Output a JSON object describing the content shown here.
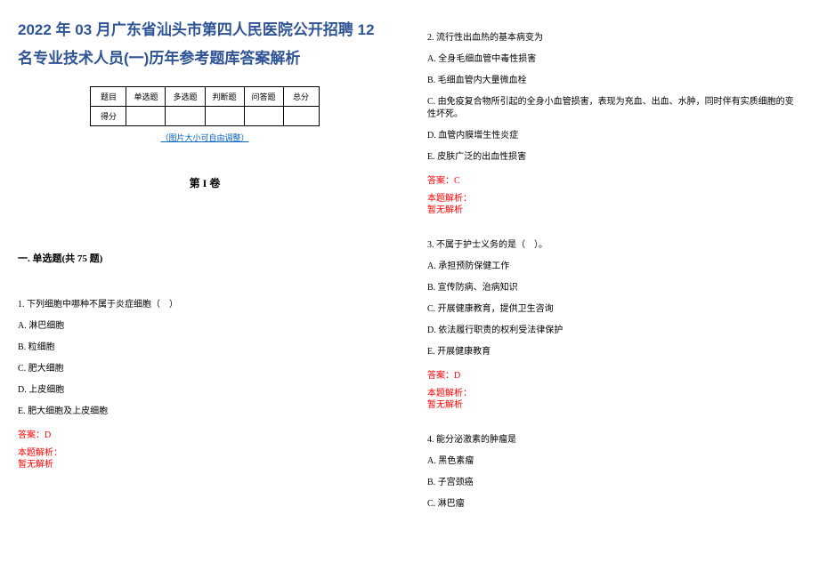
{
  "title": "2022 年 03 月广东省汕头市第四人民医院公开招聘 12 名专业技术人员(一)历年参考题库答案解析",
  "table": {
    "headers": [
      "题目",
      "单选题",
      "多选题",
      "判断题",
      "问答题",
      "总分"
    ],
    "row2_label": "得分"
  },
  "image_note": "（图片大小可自由调整）",
  "volume_title": "第 I 卷",
  "section_title": "一. 单选题(共 75 题)",
  "q1": {
    "text": "1. 下列细胞中哪种不属于炎症细胞（　）",
    "a": "A. 淋巴细胞",
    "b": "B. 粒细胞",
    "c": "C. 肥大细胞",
    "d": "D. 上皮细胞",
    "e": "E. 肥大细胞及上皮细胞",
    "answer": "答案：D",
    "analysis_label": "本题解析：",
    "analysis_none": "暂无解析"
  },
  "q2": {
    "text": "2. 流行性出血热的基本病变为",
    "a": "A. 全身毛细血管中毒性损害",
    "b": "B. 毛细血管内大量微血栓",
    "c": "C. 由免疫复合物所引起的全身小血管损害，表现为充血、出血、水肿，同时伴有实质细胞的变性坏死。",
    "d": "D. 血管内膜增生性炎症",
    "e": "E. 皮肤广泛的出血性损害",
    "answer": "答案：C",
    "analysis_label": "本题解析：",
    "analysis_none": "暂无解析"
  },
  "q3": {
    "text": "3. 不属于护士义务的是（　）。",
    "a": "A. 承担预防保健工作",
    "b": "B. 宣传防病、治病知识",
    "c": "C. 开展健康教育，提供卫生咨询",
    "d": "D. 依法履行职责的权利受法律保护",
    "e": "E. 开展健康教育",
    "answer": "答案：D",
    "analysis_label": "本题解析：",
    "analysis_none": "暂无解析"
  },
  "q4": {
    "text": "4. 能分泌激素的肿瘤是",
    "a": "A. 黑色素瘤",
    "b": "B. 子宫颈癌",
    "c": "C. 淋巴瘤"
  },
  "colors": {
    "title_color": "#2e5496",
    "link_color": "#0563c1",
    "answer_color": "#ff0000",
    "text_color": "#000000",
    "background": "#ffffff"
  }
}
